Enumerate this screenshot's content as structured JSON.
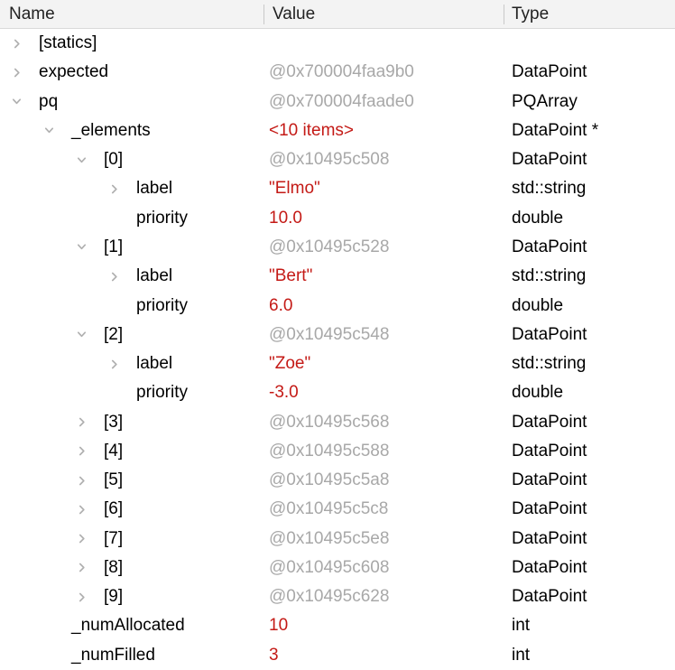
{
  "header": {
    "columns": [
      {
        "label": "Name"
      },
      {
        "label": "Value"
      },
      {
        "label": "Type"
      }
    ]
  },
  "colors": {
    "accent_red": "#c41a16",
    "muted_gray": "#a8a8a8",
    "chevron_gray": "#b0b0b0",
    "header_bg": "#f3f3f3",
    "header_border": "#d9d9d9",
    "header_separator": "#c9c9c9",
    "header_text": "#222222",
    "row_text": "#000000",
    "background": "#ffffff"
  },
  "rows": [
    {
      "name": "[statics]",
      "level": 0,
      "chevron": "right",
      "value": "",
      "value_style": "plain",
      "type": ""
    },
    {
      "name": "expected",
      "level": 0,
      "chevron": "right",
      "value": "@0x700004faa9b0",
      "value_style": "muted",
      "type": "DataPoint"
    },
    {
      "name": "pq",
      "level": 0,
      "chevron": "down",
      "value": "@0x700004faade0",
      "value_style": "muted",
      "type": "PQArray"
    },
    {
      "name": "_elements",
      "level": 1,
      "chevron": "down",
      "value": "<10 items>",
      "value_style": "changed",
      "type": "DataPoint *"
    },
    {
      "name": "[0]",
      "level": 2,
      "chevron": "down",
      "value": "@0x10495c508",
      "value_style": "muted",
      "type": "DataPoint"
    },
    {
      "name": "label",
      "level": 3,
      "chevron": "right",
      "value": "\"Elmo\"",
      "value_style": "changed",
      "type": "std::string"
    },
    {
      "name": "priority",
      "level": 3,
      "chevron": "none",
      "value": "10.0",
      "value_style": "changed",
      "type": "double"
    },
    {
      "name": "[1]",
      "level": 2,
      "chevron": "down",
      "value": "@0x10495c528",
      "value_style": "muted",
      "type": "DataPoint"
    },
    {
      "name": "label",
      "level": 3,
      "chevron": "right",
      "value": "\"Bert\"",
      "value_style": "changed",
      "type": "std::string"
    },
    {
      "name": "priority",
      "level": 3,
      "chevron": "none",
      "value": "6.0",
      "value_style": "changed",
      "type": "double"
    },
    {
      "name": "[2]",
      "level": 2,
      "chevron": "down",
      "value": "@0x10495c548",
      "value_style": "muted",
      "type": "DataPoint"
    },
    {
      "name": "label",
      "level": 3,
      "chevron": "right",
      "value": "\"Zoe\"",
      "value_style": "changed",
      "type": "std::string"
    },
    {
      "name": "priority",
      "level": 3,
      "chevron": "none",
      "value": "-3.0",
      "value_style": "changed",
      "type": "double"
    },
    {
      "name": "[3]",
      "level": 2,
      "chevron": "right",
      "value": "@0x10495c568",
      "value_style": "muted",
      "type": "DataPoint"
    },
    {
      "name": "[4]",
      "level": 2,
      "chevron": "right",
      "value": "@0x10495c588",
      "value_style": "muted",
      "type": "DataPoint"
    },
    {
      "name": "[5]",
      "level": 2,
      "chevron": "right",
      "value": "@0x10495c5a8",
      "value_style": "muted",
      "type": "DataPoint"
    },
    {
      "name": "[6]",
      "level": 2,
      "chevron": "right",
      "value": "@0x10495c5c8",
      "value_style": "muted",
      "type": "DataPoint"
    },
    {
      "name": "[7]",
      "level": 2,
      "chevron": "right",
      "value": "@0x10495c5e8",
      "value_style": "muted",
      "type": "DataPoint"
    },
    {
      "name": "[8]",
      "level": 2,
      "chevron": "right",
      "value": "@0x10495c608",
      "value_style": "muted",
      "type": "DataPoint"
    },
    {
      "name": "[9]",
      "level": 2,
      "chevron": "right",
      "value": "@0x10495c628",
      "value_style": "muted",
      "type": "DataPoint"
    },
    {
      "name": "_numAllocated",
      "level": 1,
      "chevron": "none",
      "value": "10",
      "value_style": "changed",
      "type": "int"
    },
    {
      "name": "_numFilled",
      "level": 1,
      "chevron": "none",
      "value": "3",
      "value_style": "changed",
      "type": "int"
    }
  ]
}
